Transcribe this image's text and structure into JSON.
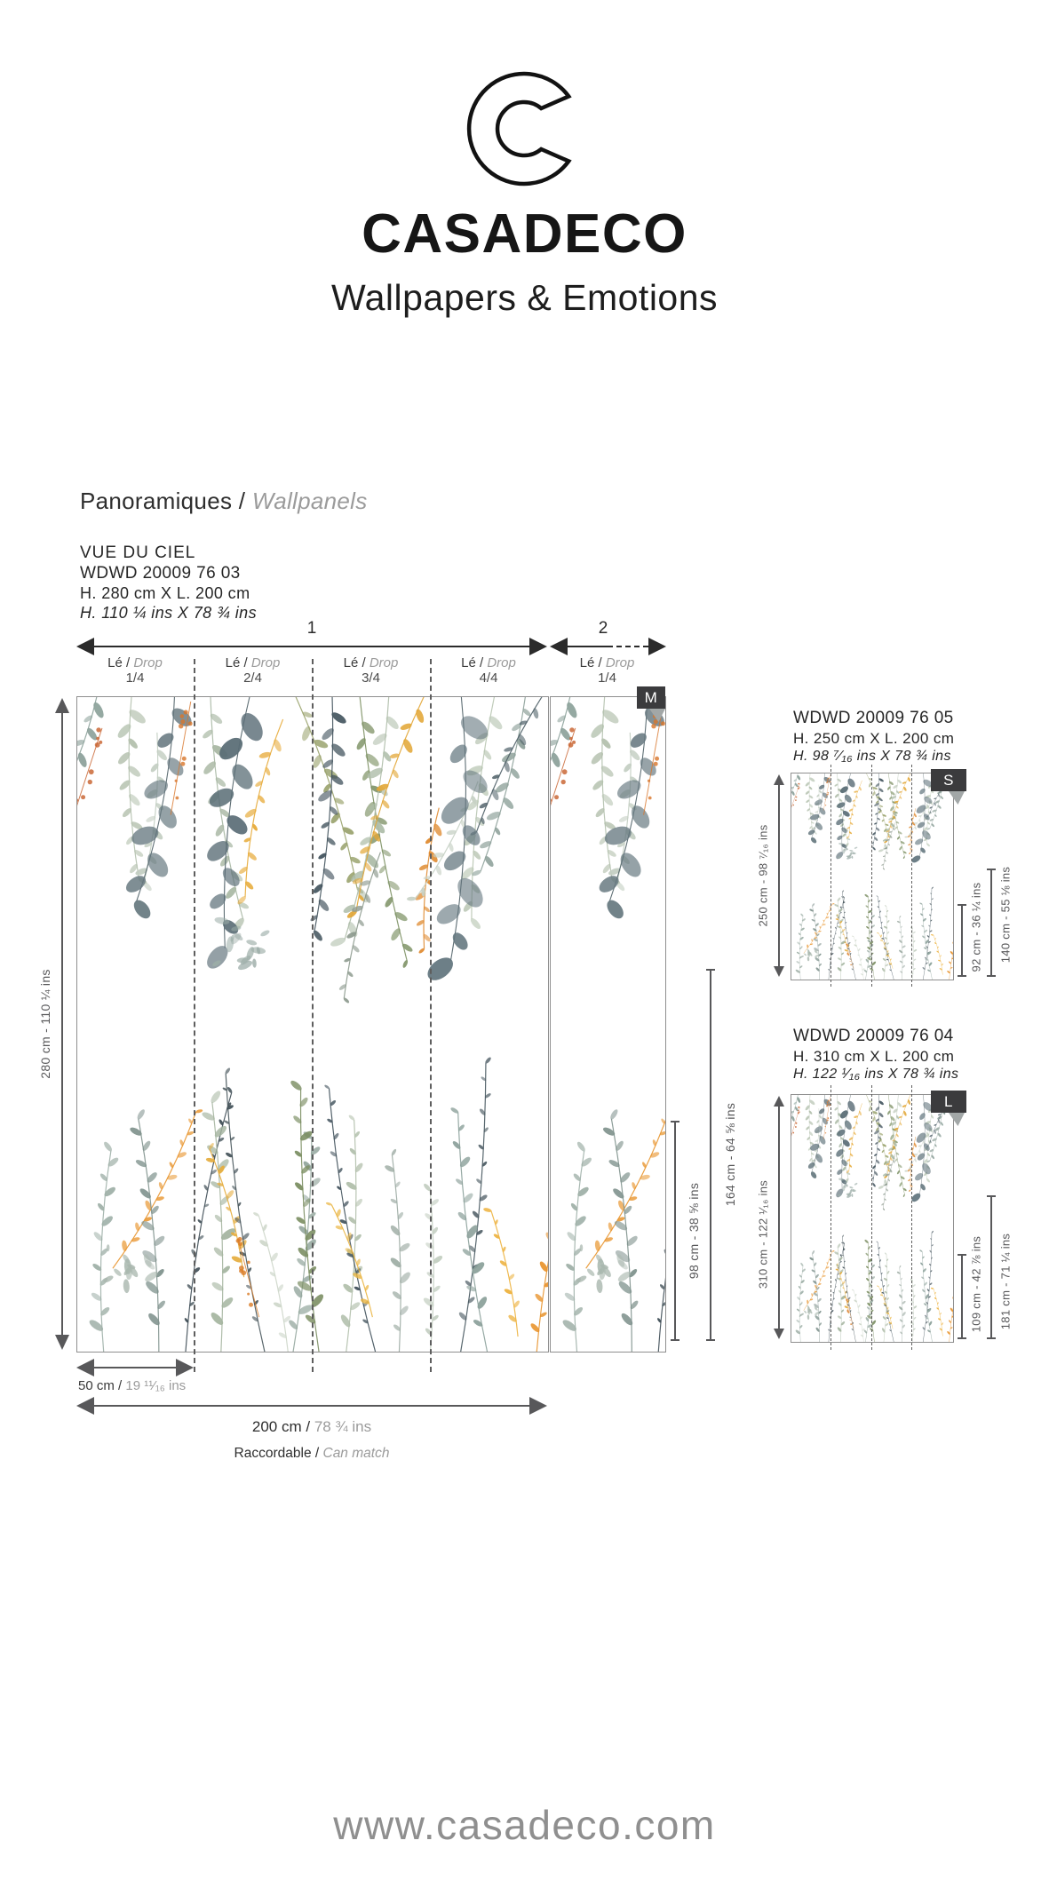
{
  "brand": {
    "logo_letter": "C",
    "name": "CASADECO",
    "tagline": "Wallpapers & Emotions"
  },
  "category": {
    "fr": "Panoramiques /",
    "en": "Wallpanels"
  },
  "product": {
    "name": "VUE DU CIEL",
    "reference": "WDWD 20009 76 03",
    "size_cm": "H. 280 cm X L. 200 cm",
    "size_ins": "H. 110 ¼ ins X 78 ¾ ins",
    "badge": "M"
  },
  "diagram": {
    "roll1": "1",
    "roll2": "2",
    "drops": [
      {
        "le": "Lé /",
        "drop": "Drop",
        "frac": "1/4"
      },
      {
        "le": "Lé /",
        "drop": "Drop",
        "frac": "2/4"
      },
      {
        "le": "Lé /",
        "drop": "Drop",
        "frac": "3/4"
      },
      {
        "le": "Lé /",
        "drop": "Drop",
        "frac": "4/4"
      },
      {
        "le": "Lé /",
        "drop": "Drop",
        "frac": "1/4"
      }
    ],
    "height_total": "280 cm - 110 ¼ ins",
    "partial_height_1": "98 cm - 38 ⅝ ins",
    "partial_height_2": "164 cm - 64 ⅝ ins",
    "drop_width_cm": "50 cm /",
    "drop_width_ins": " 19 ¹¹⁄₁₆ ins",
    "width_cm": "200 cm /",
    "width_ins": " 78 ¾ ins",
    "match_fr": "Raccordable /",
    "match_en": " Can match"
  },
  "variants": [
    {
      "reference": "WDWD 20009 76 05",
      "size_cm": "H. 250 cm X L. 200 cm",
      "size_ins": "H. 98 ⁷⁄₁₆ ins X 78 ¾ ins",
      "badge": "S",
      "height_total": "250 cm - 98 ⁷⁄₁₆ ins",
      "partial_1": "92 cm - 36 ¼ ins",
      "partial_2": "140 cm - 55 ⅛ ins"
    },
    {
      "reference": "WDWD 20009 76 04",
      "size_cm": "H. 310 cm X L. 200 cm",
      "size_ins": "H. 122 ¹⁄₁₆ ins X 78 ¾ ins",
      "badge": "L",
      "height_total": "310 cm - 122 ¹⁄₁₆ ins",
      "partial_1": "109 cm - 42 ⅞ ins",
      "partial_2": "181 cm - 71 ¼ ins"
    }
  ],
  "footer": {
    "url": "www.casadeco.com"
  },
  "colors": {
    "text_dark": "#232323",
    "text_gray": "#9b9b9b",
    "line_gray": "#58585a",
    "arrow_dark": "#2b2b2b",
    "badge_bg": "#3b3b3d",
    "badge_fold": "#a2a7a7",
    "panel_border": "#8f8f8f",
    "foliage_slate": "#5a6d76",
    "foliage_sage": "#aebda9",
    "foliage_olive": "#7d9164",
    "foliage_gold": "#e7ab3a",
    "foliage_orange": "#e8952e"
  }
}
